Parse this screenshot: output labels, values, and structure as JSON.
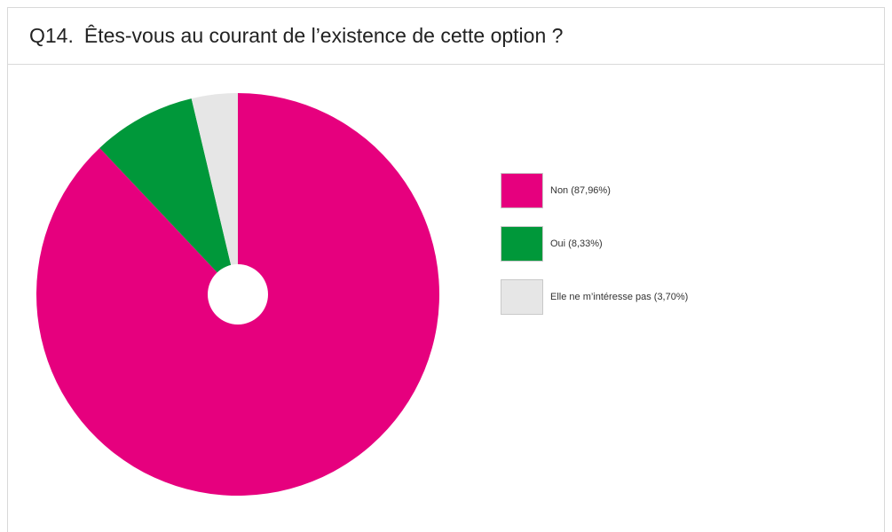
{
  "question": {
    "number": "Q14.",
    "text": "Êtes-vous au courant de l’existence de cette option ?"
  },
  "chart_data": {
    "type": "pie",
    "categories": [
      "Non",
      "Oui",
      "Elle ne m’intéresse pas"
    ],
    "values": [
      87.96,
      8.33,
      3.7
    ],
    "labels": [
      "Non (87,96%)",
      "Oui (8,33%)",
      "Elle ne m’intéresse pas (3,70%)"
    ],
    "colors": [
      "#E6007E",
      "#00983A",
      "#E6E6E6"
    ],
    "donut_hole": true,
    "legend_position": "right"
  }
}
